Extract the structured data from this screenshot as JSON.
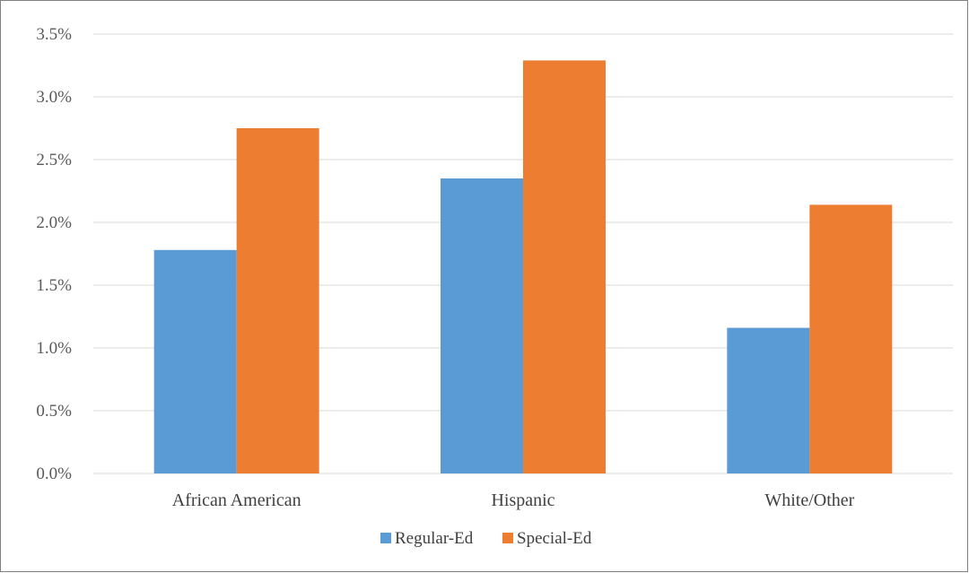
{
  "chart_data": {
    "type": "bar",
    "categories": [
      "African American",
      "Hispanic",
      "White/Other"
    ],
    "series": [
      {
        "name": "Regular-Ed",
        "values": [
          1.78,
          2.35,
          1.16
        ],
        "color": "#5b9bd5"
      },
      {
        "name": "Special-Ed",
        "values": [
          2.75,
          3.29,
          2.14
        ],
        "color": "#ed7d31"
      }
    ],
    "ylim": [
      0,
      3.5
    ],
    "yticks": [
      0,
      0.5,
      1.0,
      1.5,
      2.0,
      2.5,
      3.0,
      3.5
    ],
    "ytick_labels": [
      "0.0%",
      "0.5%",
      "1.0%",
      "1.5%",
      "2.0%",
      "2.5%",
      "3.0%",
      "3.5%"
    ],
    "grid": true,
    "legend_position": "bottom",
    "title": "",
    "xlabel": "",
    "ylabel": ""
  },
  "colors": {
    "gridline": "#d9d9d9",
    "border": "#808080"
  }
}
